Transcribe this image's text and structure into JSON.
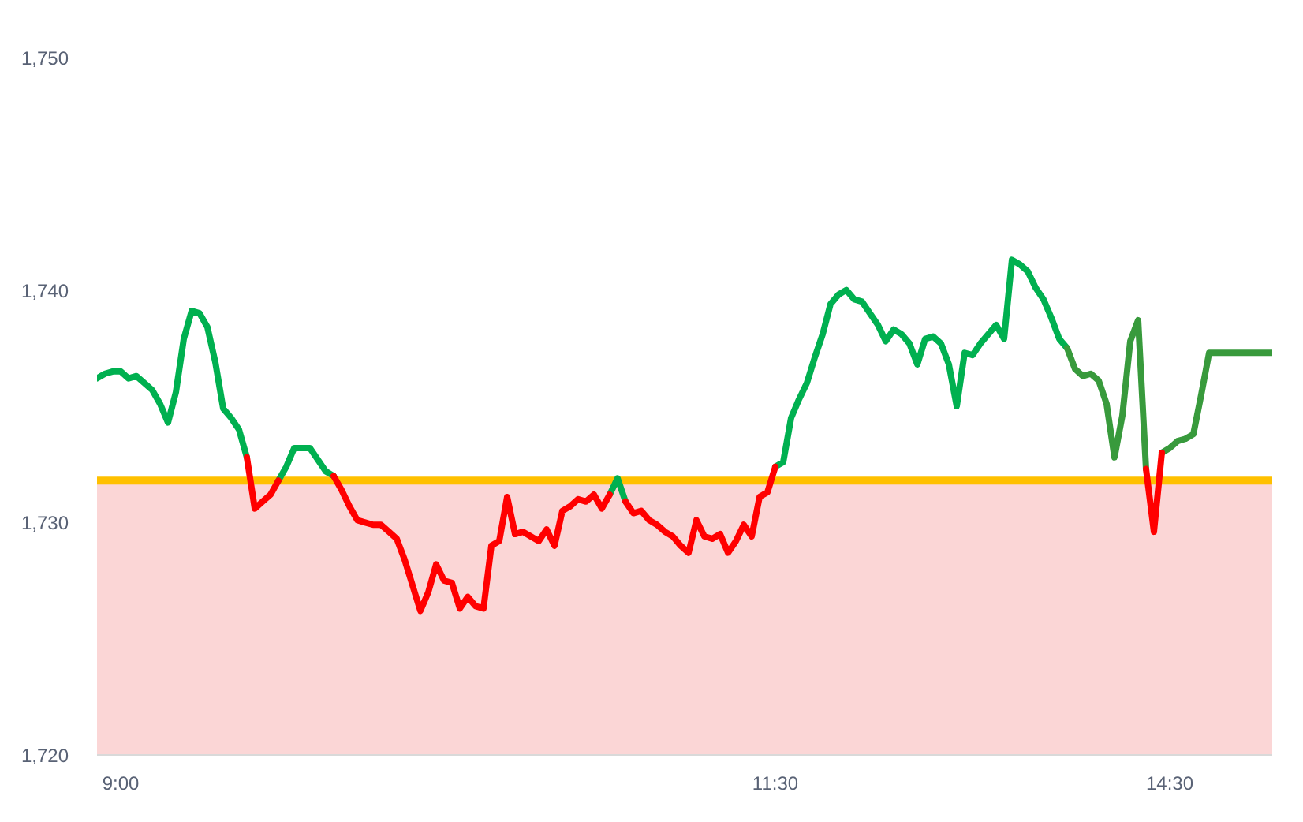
{
  "chart_data": {
    "type": "line",
    "categories": [
      null,
      null,
      null,
      "9:00",
      null,
      null,
      null,
      null,
      null,
      null,
      null,
      null,
      null,
      null,
      null,
      null,
      null,
      null,
      null,
      null,
      null,
      null,
      null,
      null,
      null,
      null,
      null,
      null,
      null,
      null,
      null,
      null,
      null,
      null,
      null,
      null,
      null,
      null,
      null,
      null,
      null,
      null,
      null,
      null,
      null,
      null,
      null,
      null,
      null,
      null,
      null,
      null,
      null,
      null,
      null,
      null,
      null,
      null,
      null,
      null,
      null,
      null,
      null,
      null,
      null,
      null,
      null,
      null,
      null,
      null,
      null,
      null,
      null,
      null,
      null,
      null,
      null,
      null,
      null,
      null,
      null,
      null,
      null,
      null,
      null,
      null,
      "11:30",
      null,
      null,
      null,
      null,
      null,
      null,
      null,
      null,
      null,
      null,
      null,
      null,
      null,
      null,
      null,
      null,
      null,
      null,
      null,
      null,
      null,
      null,
      null,
      null,
      null,
      null,
      null,
      null,
      null,
      null,
      null,
      null,
      null,
      null,
      null,
      null,
      null,
      null,
      null,
      null,
      null,
      null,
      null,
      null,
      null,
      null,
      null,
      null,
      null,
      "14:30",
      null,
      null,
      null,
      null,
      null,
      null,
      null,
      null,
      null,
      null,
      null,
      null,
      null
    ],
    "ylim": [
      1720,
      1750
    ],
    "yticks": [
      {
        "value": 1720,
        "label": "1,720"
      },
      {
        "value": 1730,
        "label": "1,730"
      },
      {
        "value": 1740,
        "label": "1,740"
      },
      {
        "value": 1750,
        "label": "1,750"
      }
    ],
    "series": [
      {
        "color": "#00b050",
        "values": [
          1736.2,
          1736.4,
          1736.5,
          1736.5,
          1736.2,
          1736.3,
          1736.0,
          1735.7,
          1735.1,
          1734.3,
          1735.6,
          1737.9,
          1739.1,
          1739.0,
          1738.4,
          1736.9,
          1734.9,
          1734.5,
          1734.0,
          1732.8,
          null,
          null,
          null,
          1731.8,
          1732.4,
          1733.2,
          1733.2,
          1733.2,
          1732.7,
          1732.2,
          1732.0,
          null,
          null,
          null,
          null,
          null,
          null,
          null,
          null,
          null,
          null,
          null,
          null,
          null,
          null,
          null,
          null,
          null,
          null,
          null,
          null,
          null,
          null,
          null,
          null,
          null,
          null,
          null,
          null,
          null,
          null,
          null,
          null,
          null,
          null,
          1731.2,
          1731.9,
          1730.9,
          null,
          null,
          null,
          null,
          null,
          null,
          null,
          null,
          null,
          null,
          null,
          null,
          null,
          null,
          null,
          null,
          null,
          null,
          1732.4,
          1732.6,
          1734.5,
          1735.3,
          1736.0,
          1737.1,
          1738.1,
          1739.4,
          1739.8,
          1740.0,
          1739.6,
          1739.5,
          1739.0,
          1738.5,
          1737.8,
          1738.3,
          1738.1,
          1737.7,
          1736.8,
          1737.9,
          1738.0,
          1737.7,
          1736.8,
          1735.0,
          1737.3,
          1737.2,
          1737.7,
          1738.1,
          1738.5,
          1737.9,
          1741.3,
          1741.1,
          1740.8,
          1740.1,
          1739.6,
          1738.8,
          1737.9,
          1737.5,
          null,
          null,
          null,
          null,
          null,
          null,
          null,
          null,
          null,
          null,
          null,
          null,
          null,
          null,
          null,
          null,
          null,
          null,
          null,
          null,
          null,
          null,
          null,
          null,
          null,
          null
        ]
      },
      {
        "color": "#389a3c",
        "values": [
          null,
          null,
          null,
          null,
          null,
          null,
          null,
          null,
          null,
          null,
          null,
          null,
          null,
          null,
          null,
          null,
          null,
          null,
          null,
          null,
          null,
          null,
          null,
          null,
          null,
          null,
          null,
          null,
          null,
          null,
          null,
          null,
          null,
          null,
          null,
          null,
          null,
          null,
          null,
          null,
          null,
          null,
          null,
          null,
          null,
          null,
          null,
          null,
          null,
          null,
          null,
          null,
          null,
          null,
          null,
          null,
          null,
          null,
          null,
          null,
          null,
          null,
          null,
          null,
          null,
          null,
          null,
          null,
          null,
          null,
          null,
          null,
          null,
          null,
          null,
          null,
          null,
          null,
          null,
          null,
          null,
          null,
          null,
          null,
          null,
          null,
          null,
          null,
          null,
          null,
          null,
          null,
          null,
          null,
          null,
          null,
          null,
          null,
          null,
          null,
          null,
          null,
          null,
          null,
          null,
          null,
          null,
          null,
          null,
          null,
          null,
          null,
          null,
          null,
          null,
          null,
          null,
          null,
          null,
          null,
          null,
          null,
          null,
          1737.5,
          1736.6,
          1736.3,
          1736.4,
          1736.1,
          1735.1,
          1732.8,
          1734.6,
          1737.8,
          1738.7,
          1732.3,
          null,
          1733.0,
          1733.2,
          1733.5,
          1733.6,
          1733.8,
          1735.5,
          1737.3,
          1737.3,
          1737.3,
          1737.3,
          1737.3,
          1737.3,
          1737.3,
          1737.3,
          1737.3
        ]
      },
      {
        "color": "#ff0000",
        "values": [
          null,
          null,
          null,
          null,
          null,
          null,
          null,
          null,
          null,
          null,
          null,
          null,
          null,
          null,
          null,
          null,
          null,
          null,
          null,
          1732.8,
          1730.6,
          1730.9,
          1731.2,
          1731.8,
          null,
          null,
          null,
          null,
          null,
          null,
          1732.0,
          1731.4,
          1730.7,
          1730.1,
          1730.0,
          1729.9,
          1729.9,
          1729.6,
          1729.3,
          1728.4,
          1727.3,
          1726.2,
          1727.0,
          1728.2,
          1727.5,
          1727.4,
          1726.3,
          1726.8,
          1726.4,
          1726.3,
          1729.0,
          1729.2,
          1731.1,
          1729.5,
          1729.6,
          1729.4,
          1729.2,
          1729.7,
          1729.0,
          1730.5,
          1730.7,
          1731.0,
          1730.9,
          1731.2,
          1730.6,
          1731.2,
          null,
          1730.9,
          1730.4,
          1730.5,
          1730.1,
          1729.9,
          1729.6,
          1729.4,
          1729.0,
          1728.7,
          1730.1,
          1729.4,
          1729.3,
          1729.5,
          1728.7,
          1729.2,
          1729.9,
          1729.4,
          1731.1,
          1731.3,
          1732.4,
          null,
          null,
          null,
          null,
          null,
          null,
          null,
          null,
          null,
          null,
          null,
          null,
          null,
          null,
          null,
          null,
          null,
          null,
          null,
          null,
          null,
          null,
          null,
          null,
          null,
          null,
          null,
          null,
          null,
          null,
          null,
          null,
          null,
          null,
          null,
          null,
          null,
          null,
          null,
          null,
          null,
          null,
          null,
          null,
          null,
          null,
          1732.3,
          1729.6,
          1733.0,
          null,
          null,
          null,
          null,
          null,
          null,
          null,
          null,
          null,
          null,
          null,
          null,
          null,
          null
        ]
      }
    ],
    "ref_lines": [
      {
        "axis": "y",
        "value": 1731.8,
        "color": "#ffc000"
      }
    ],
    "bands": [
      {
        "axis": "y",
        "from": 1720,
        "to": 1731.8,
        "color": "#f8b4b4"
      }
    ],
    "line_style": "solid"
  }
}
